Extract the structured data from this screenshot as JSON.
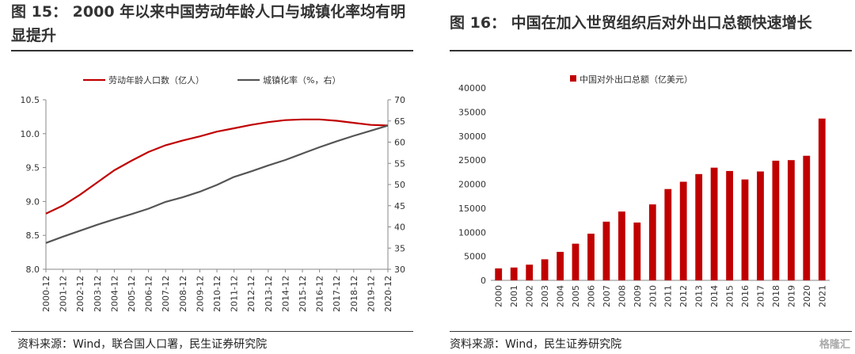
{
  "left": {
    "title": "图 15：  2000 年以来中国劳动年龄人口与城镇化率均有明显提升",
    "source": "资料来源：Wind，联合国人口署，民生证券研究院",
    "chart_data": {
      "type": "line",
      "x": [
        "2000-12",
        "2001-12",
        "2002-12",
        "2003-12",
        "2004-12",
        "2005-12",
        "2006-12",
        "2007-12",
        "2008-12",
        "2009-12",
        "2010-12",
        "2011-12",
        "2012-12",
        "2013-12",
        "2014-12",
        "2015-12",
        "2016-12",
        "2017-12",
        "2018-12",
        "2019-12",
        "2020-12"
      ],
      "series": [
        {
          "name": "劳动年龄人口数（亿人）",
          "axis": "left",
          "color": "#c00000",
          "values": [
            8.82,
            8.94,
            9.1,
            9.28,
            9.46,
            9.6,
            9.73,
            9.83,
            9.9,
            9.96,
            10.03,
            10.08,
            10.13,
            10.17,
            10.2,
            10.21,
            10.21,
            10.19,
            10.16,
            10.13,
            10.12
          ]
        },
        {
          "name": "城镇化率（%，右）",
          "axis": "right",
          "color": "#555555",
          "values": [
            36.2,
            37.7,
            39.1,
            40.5,
            41.8,
            43.0,
            44.3,
            45.9,
            47.0,
            48.3,
            49.9,
            51.8,
            53.1,
            54.5,
            55.8,
            57.3,
            58.8,
            60.2,
            61.5,
            62.7,
            63.9
          ]
        }
      ],
      "ylim_left": [
        8.0,
        10.5
      ],
      "yticks_left": [
        "8.0",
        "8.5",
        "9.0",
        "9.5",
        "10.0",
        "10.5"
      ],
      "ylim_right": [
        30,
        70
      ],
      "yticks_right": [
        "30",
        "35",
        "40",
        "45",
        "50",
        "55",
        "60",
        "65",
        "70"
      ],
      "legend": "top",
      "grid": false
    }
  },
  "right": {
    "title": "图 16：   中国在加入世贸组织后对外出口总额快速增长",
    "source": "资料来源：Wind，民生证券研究院",
    "chart_data": {
      "type": "bar",
      "categories": [
        "2000",
        "2001",
        "2002",
        "2003",
        "2004",
        "2005",
        "2006",
        "2007",
        "2008",
        "2009",
        "2010",
        "2011",
        "2012",
        "2013",
        "2014",
        "2015",
        "2016",
        "2017",
        "2018",
        "2019",
        "2020",
        "2021"
      ],
      "series": [
        {
          "name": "中国对外出口总额（亿美元）",
          "color": "#c00000",
          "values": [
            2492,
            2661,
            3256,
            4382,
            5933,
            7620,
            9690,
            12200,
            14307,
            12016,
            15778,
            18984,
            20487,
            22090,
            23423,
            22735,
            20976,
            22633,
            24867,
            24995,
            25900,
            33630
          ]
        }
      ],
      "ylim": [
        0,
        40000
      ],
      "yticks": [
        "0",
        "5000",
        "10000",
        "15000",
        "20000",
        "25000",
        "30000",
        "35000",
        "40000"
      ],
      "legend": "top",
      "grid": false
    }
  },
  "watermark": "格隆汇"
}
